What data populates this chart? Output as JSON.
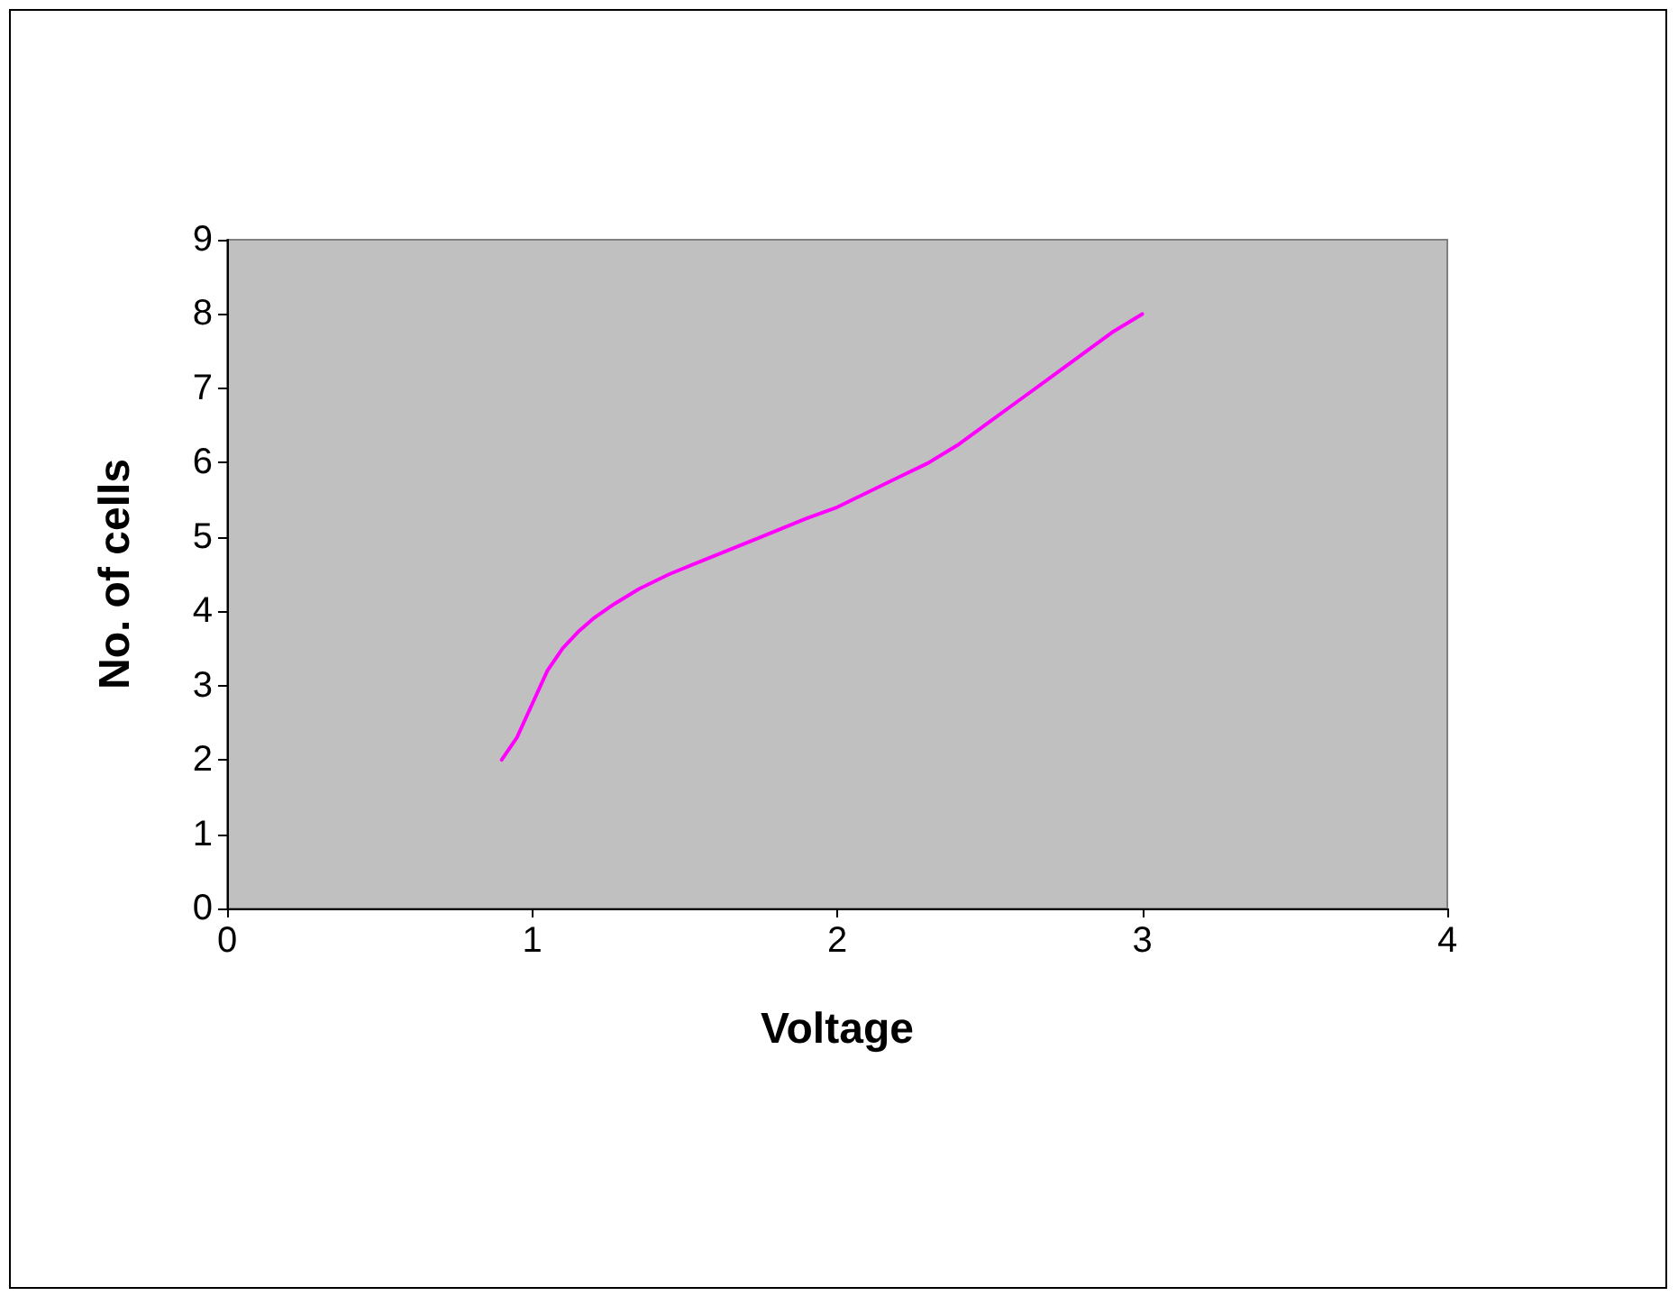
{
  "chart_data": {
    "type": "line",
    "xlabel": "Voltage",
    "ylabel": "No. of cells",
    "series": [
      {
        "color": "#ff00ff",
        "x": [
          0.9,
          0.95,
          1.0,
          1.05,
          1.1,
          1.15,
          1.2,
          1.27,
          1.35,
          1.45,
          1.6,
          1.75,
          1.9,
          2.0,
          2.1,
          2.2,
          2.3,
          2.4,
          2.5,
          2.6,
          2.7,
          2.8,
          2.9,
          3.0
        ],
        "values": [
          2.0,
          2.3,
          2.75,
          3.2,
          3.5,
          3.72,
          3.9,
          4.1,
          4.3,
          4.5,
          4.75,
          5.0,
          5.25,
          5.4,
          5.6,
          5.8,
          6.0,
          6.25,
          6.55,
          6.85,
          7.15,
          7.45,
          7.75,
          8.0
        ]
      }
    ],
    "xlim": [
      0,
      4
    ],
    "xticks": [
      0,
      1,
      2,
      3,
      4
    ],
    "ylim": [
      0,
      9
    ],
    "yticks": [
      0,
      1,
      2,
      3,
      4,
      5,
      6,
      7,
      8,
      9
    ],
    "marker": "none",
    "line_style": "solid"
  }
}
